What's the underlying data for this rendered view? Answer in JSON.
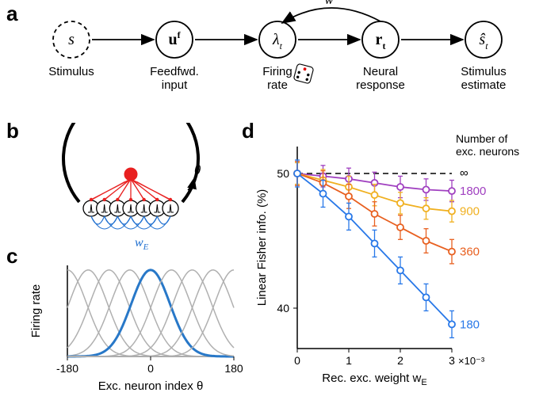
{
  "panels": {
    "a": {
      "label": "a"
    },
    "b": {
      "label": "b"
    },
    "c": {
      "label": "c"
    },
    "d": {
      "label": "d"
    }
  },
  "panel_a": {
    "nodes": [
      {
        "symbol": "s",
        "italic": true,
        "label": "Stimulus",
        "dashed": true
      },
      {
        "symbol": "u",
        "sup": "f",
        "bold": true,
        "label": "Feedfwd.\ninput"
      },
      {
        "symbol": "λ",
        "sub": "t",
        "italic": true,
        "label": "Firing\nrate"
      },
      {
        "symbol": "r",
        "sub": "t",
        "bold": true,
        "label": "Neural\nresponse"
      },
      {
        "symbol": "ŝ",
        "sub": "t",
        "italic": true,
        "label": "Stimulus\nestimate"
      }
    ],
    "feedback_label": "w"
  },
  "panel_b": {
    "theta_label": "θ",
    "weight_label": "w",
    "weight_sub": "E",
    "colors": {
      "exc": "#e82020",
      "inh": "#2070d0",
      "ring": "#000000"
    }
  },
  "panel_c": {
    "xlabel": "Exc. neuron index θ",
    "ylabel": "Firing rate",
    "xlim": [
      -180,
      180
    ],
    "xticks": [
      -180,
      0,
      180
    ],
    "curve_color": "#2878c8",
    "bg_curve_color": "#b0b0b0",
    "centers": [
      -180,
      -135,
      -90,
      -45,
      0,
      45,
      90,
      135,
      180
    ],
    "sigma": 42
  },
  "panel_d": {
    "xlabel": "Rec. exc. weight w",
    "xlabel_sub": "E",
    "ylabel": "Linear Fisher info. (%)",
    "legend_title": "Number of\nexc. neurons",
    "x_exponent": "×10⁻³",
    "xlim": [
      0,
      3
    ],
    "xticks": [
      0,
      1,
      2,
      3
    ],
    "ylim": [
      37,
      52
    ],
    "yticks": [
      40,
      50
    ],
    "dashed_y": 50,
    "series": [
      {
        "name": "∞",
        "color": "#000000",
        "label_only": true
      },
      {
        "name": "1800",
        "color": "#a040c0",
        "x": [
          0,
          0.5,
          1,
          1.5,
          2,
          2.5,
          3
        ],
        "y": [
          50,
          49.8,
          49.6,
          49.3,
          49.0,
          48.8,
          48.7
        ],
        "err": [
          0.8,
          0.8,
          0.8,
          0.8,
          0.8,
          0.8,
          0.8
        ]
      },
      {
        "name": "900",
        "color": "#f0b020",
        "x": [
          0,
          0.5,
          1,
          1.5,
          2,
          2.5,
          3
        ],
        "y": [
          50,
          49.5,
          49.0,
          48.4,
          47.8,
          47.4,
          47.2
        ],
        "err": [
          0.8,
          0.8,
          0.8,
          0.8,
          0.8,
          0.8,
          0.8
        ]
      },
      {
        "name": "360",
        "color": "#e86020",
        "x": [
          0,
          0.5,
          1,
          1.5,
          2,
          2.5,
          3
        ],
        "y": [
          50,
          49.3,
          48.3,
          47.0,
          46.0,
          45.0,
          44.2
        ],
        "err": [
          0.9,
          0.9,
          0.9,
          0.9,
          0.9,
          0.9,
          0.9
        ]
      },
      {
        "name": "180",
        "color": "#2878e8",
        "x": [
          0,
          0.5,
          1,
          1.5,
          2,
          2.5,
          3
        ],
        "y": [
          50,
          48.5,
          46.8,
          44.8,
          42.8,
          40.8,
          38.8
        ],
        "err": [
          1.0,
          1.0,
          1.0,
          1.0,
          1.0,
          1.0,
          1.0
        ]
      }
    ]
  }
}
